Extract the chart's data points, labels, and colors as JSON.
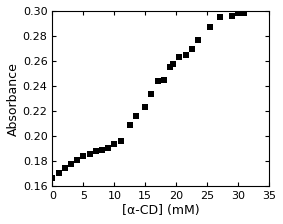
{
  "x": [
    0.0,
    1.0,
    2.0,
    3.0,
    4.0,
    5.0,
    6.0,
    7.0,
    8.0,
    9.0,
    10.0,
    11.0,
    12.5,
    13.5,
    15.0,
    16.0,
    17.0,
    18.0,
    19.0,
    19.5,
    20.5,
    21.5,
    22.5,
    23.5,
    25.5,
    27.0,
    29.0,
    30.0,
    31.0
  ],
  "y": [
    0.167,
    0.171,
    0.175,
    0.178,
    0.181,
    0.184,
    0.186,
    0.188,
    0.189,
    0.191,
    0.194,
    0.196,
    0.209,
    0.216,
    0.223,
    0.234,
    0.244,
    0.245,
    0.255,
    0.258,
    0.263,
    0.265,
    0.27,
    0.277,
    0.287,
    0.295,
    0.296,
    0.298,
    0.298
  ],
  "xlabel": "[α-CD] (mM)",
  "ylabel": "Absorbance",
  "xlim": [
    0,
    35
  ],
  "ylim": [
    0.16,
    0.3
  ],
  "xticks": [
    0,
    5,
    10,
    15,
    20,
    25,
    30,
    35
  ],
  "yticks": [
    0.16,
    0.18,
    0.2,
    0.22,
    0.24,
    0.26,
    0.28,
    0.3
  ],
  "marker": "s",
  "marker_color": "black",
  "marker_size": 5,
  "xlabel_fontsize": 9,
  "ylabel_fontsize": 9,
  "tick_fontsize": 8,
  "fig_width": 2.83,
  "fig_height": 2.24
}
